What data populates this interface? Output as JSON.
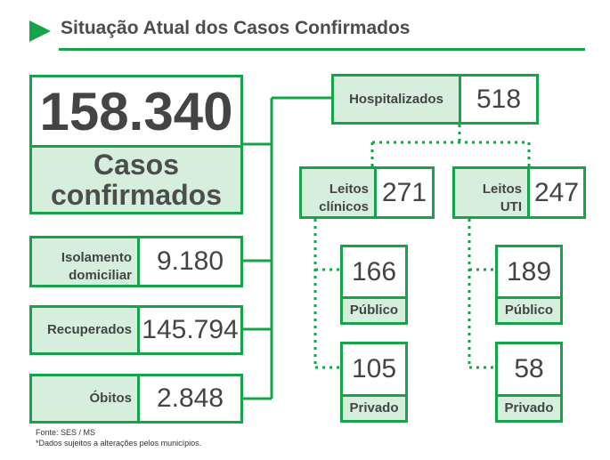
{
  "header": {
    "title": "Situação Atual dos Casos Confirmados",
    "accent_color": "#16a34a",
    "icon": "play-triangle-icon"
  },
  "main": {
    "value": "158.340",
    "label_line1": "Casos",
    "label_line2": "confirmados"
  },
  "isolamento": {
    "label_line1": "Isolamento",
    "label_line2": "domiciliar",
    "value": "9.180"
  },
  "recuperados": {
    "label": "Recuperados",
    "value": "145.794"
  },
  "obitos": {
    "label": "Óbitos",
    "value": "2.848"
  },
  "hospitalizados": {
    "label": "Hospitalizados",
    "value": "518"
  },
  "leitos_clinicos": {
    "label_line1": "Leitos",
    "label_line2": "clínicos",
    "value": "271",
    "publico": {
      "value": "166",
      "label": "Público"
    },
    "privado": {
      "value": "105",
      "label": "Privado"
    }
  },
  "leitos_uti": {
    "label_line1": "Leitos",
    "label_line2": "UTI",
    "value": "247",
    "publico": {
      "value": "189",
      "label": "Público"
    },
    "privado": {
      "value": "58",
      "label": "Privado"
    }
  },
  "footer": {
    "source": "Fonte: SES / MS",
    "note": "*Dados sujeitos a alterações pelos municípios."
  }
}
